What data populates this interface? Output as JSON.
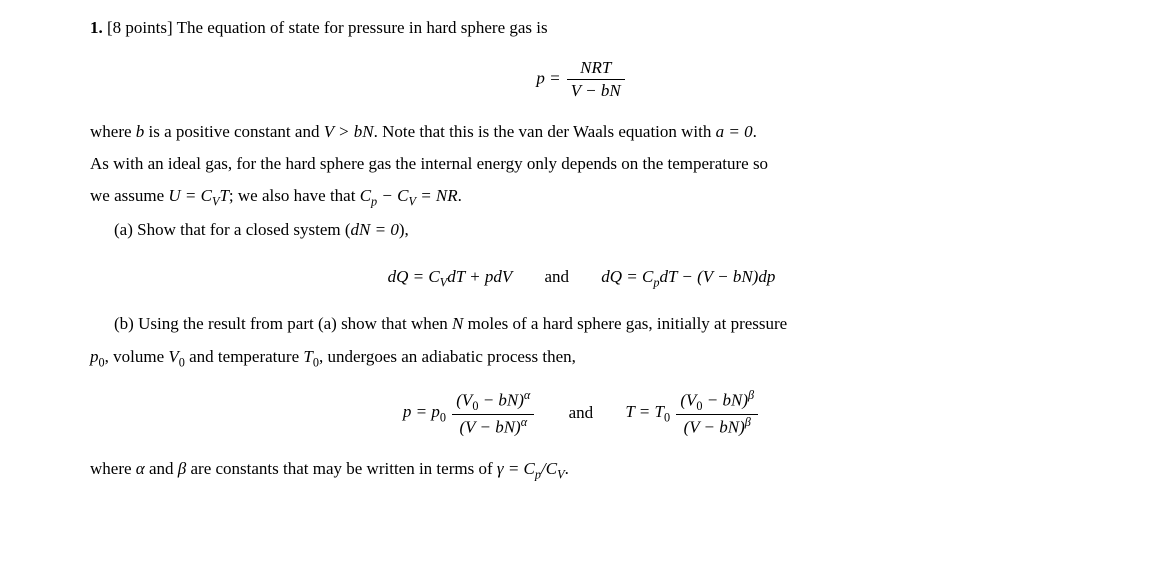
{
  "typography": {
    "font_family": "Times New Roman",
    "body_fontsize_pt": 12,
    "line_height": 1.9,
    "text_color": "#000000",
    "background_color": "#ffffff"
  },
  "problem": {
    "number": "1.",
    "points": "[8 points]",
    "intro_text": "The equation of state for pressure in hard sphere gas is",
    "equation_of_state": {
      "lhs": "p =",
      "numerator": "NRT",
      "denominator": "V − bN"
    },
    "paragraph_1a": "where ",
    "b_var": "b",
    "paragraph_1b": " is a positive constant and ",
    "inequality": "V > bN",
    "paragraph_1c": ". Note that this is the van der Waals equation with ",
    "a_eq": "a = 0",
    "paragraph_1d": ".",
    "paragraph_2a": "As with an ideal gas, for the hard sphere gas the internal energy only depends on the temperature so",
    "paragraph_3a": "we assume ",
    "u_eq": "U = C",
    "u_sub": "V",
    "u_tail": "T",
    "paragraph_3b": "; we also have that ",
    "cp_minus_cv": "C",
    "p_sub": "p",
    "minus": " − C",
    "v_sub": "V",
    "eq_nr": " = NR",
    "paragraph_3c": ".",
    "part_a": {
      "label": "(a) Show that for a closed system (",
      "dn_eq": "dN = 0",
      "label_end": "),",
      "eq1_lhs": "dQ = C",
      "eq1_sub": "V",
      "eq1_rhs": "dT + pdV",
      "and": "and",
      "eq2_lhs": "dQ = C",
      "eq2_sub": "p",
      "eq2_rhs": "dT − (V − bN)dp"
    },
    "part_b": {
      "label_a": "(b) Using the result from part (a) show that when ",
      "n_var": "N",
      "label_b": " moles of a hard sphere gas, initially at pressure",
      "line2_a": "p",
      "line2_sub0": "0",
      "line2_b": ", volume ",
      "line2_v": "V",
      "line2_c": " and temperature ",
      "line2_t": "T",
      "line2_d": ", undergoes an adiabatic process then,",
      "eq_p_lhs": "p = p",
      "eq_p_num": "(V",
      "num_sub0": "0",
      "num_tail": " − bN)",
      "eq_p_den": "(V − bN)",
      "alpha": "α",
      "and": "and",
      "eq_t_lhs": "T = T",
      "beta": "β",
      "closing_a": "where ",
      "alpha_var": "α",
      "closing_b": " and ",
      "beta_var": "β",
      "closing_c": " are constants that may be written in terms of ",
      "gamma_eq": "γ = C",
      "gamma_p": "p",
      "gamma_slash": "/C",
      "gamma_v": "V",
      "closing_d": "."
    }
  }
}
